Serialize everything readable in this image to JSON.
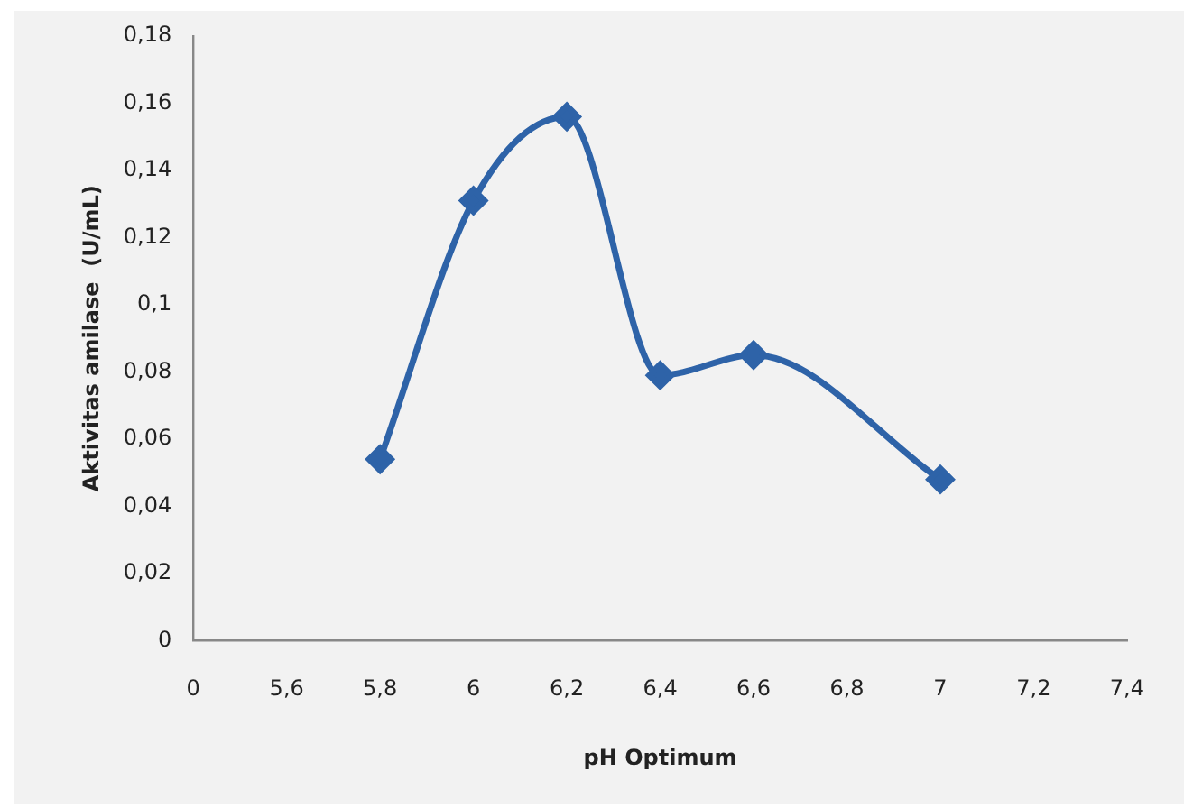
{
  "chart_data": {
    "type": "line",
    "xlabel": "pH Optimum",
    "ylabel": "Aktivitas amilase  (U/mL)",
    "categories": [
      "0",
      "5,6",
      "5,8",
      "6",
      "6,2",
      "6,4",
      "6,6",
      "6,8",
      "7",
      "7,2",
      "7,4"
    ],
    "series": [
      {
        "color": "#2e63a8",
        "values": [
          null,
          null,
          0.054,
          0.131,
          0.156,
          0.079,
          0.085,
          null,
          0.048,
          null,
          null
        ]
      }
    ],
    "ylim": [
      0,
      0.18
    ],
    "yticks": [
      {
        "value": 0,
        "label": "0"
      },
      {
        "value": 0.02,
        "label": "0,02"
      },
      {
        "value": 0.04,
        "label": "0,04"
      },
      {
        "value": 0.06,
        "label": "0,06"
      },
      {
        "value": 0.08,
        "label": "0,08"
      },
      {
        "value": 0.1,
        "label": "0,1"
      },
      {
        "value": 0.12,
        "label": "0,12"
      },
      {
        "value": 0.14,
        "label": "0,14"
      },
      {
        "value": 0.16,
        "label": "0,16"
      },
      {
        "value": 0.18,
        "label": "0,18"
      }
    ],
    "grid": false,
    "legend": false,
    "marker": "diamond",
    "line_style": "solid"
  }
}
